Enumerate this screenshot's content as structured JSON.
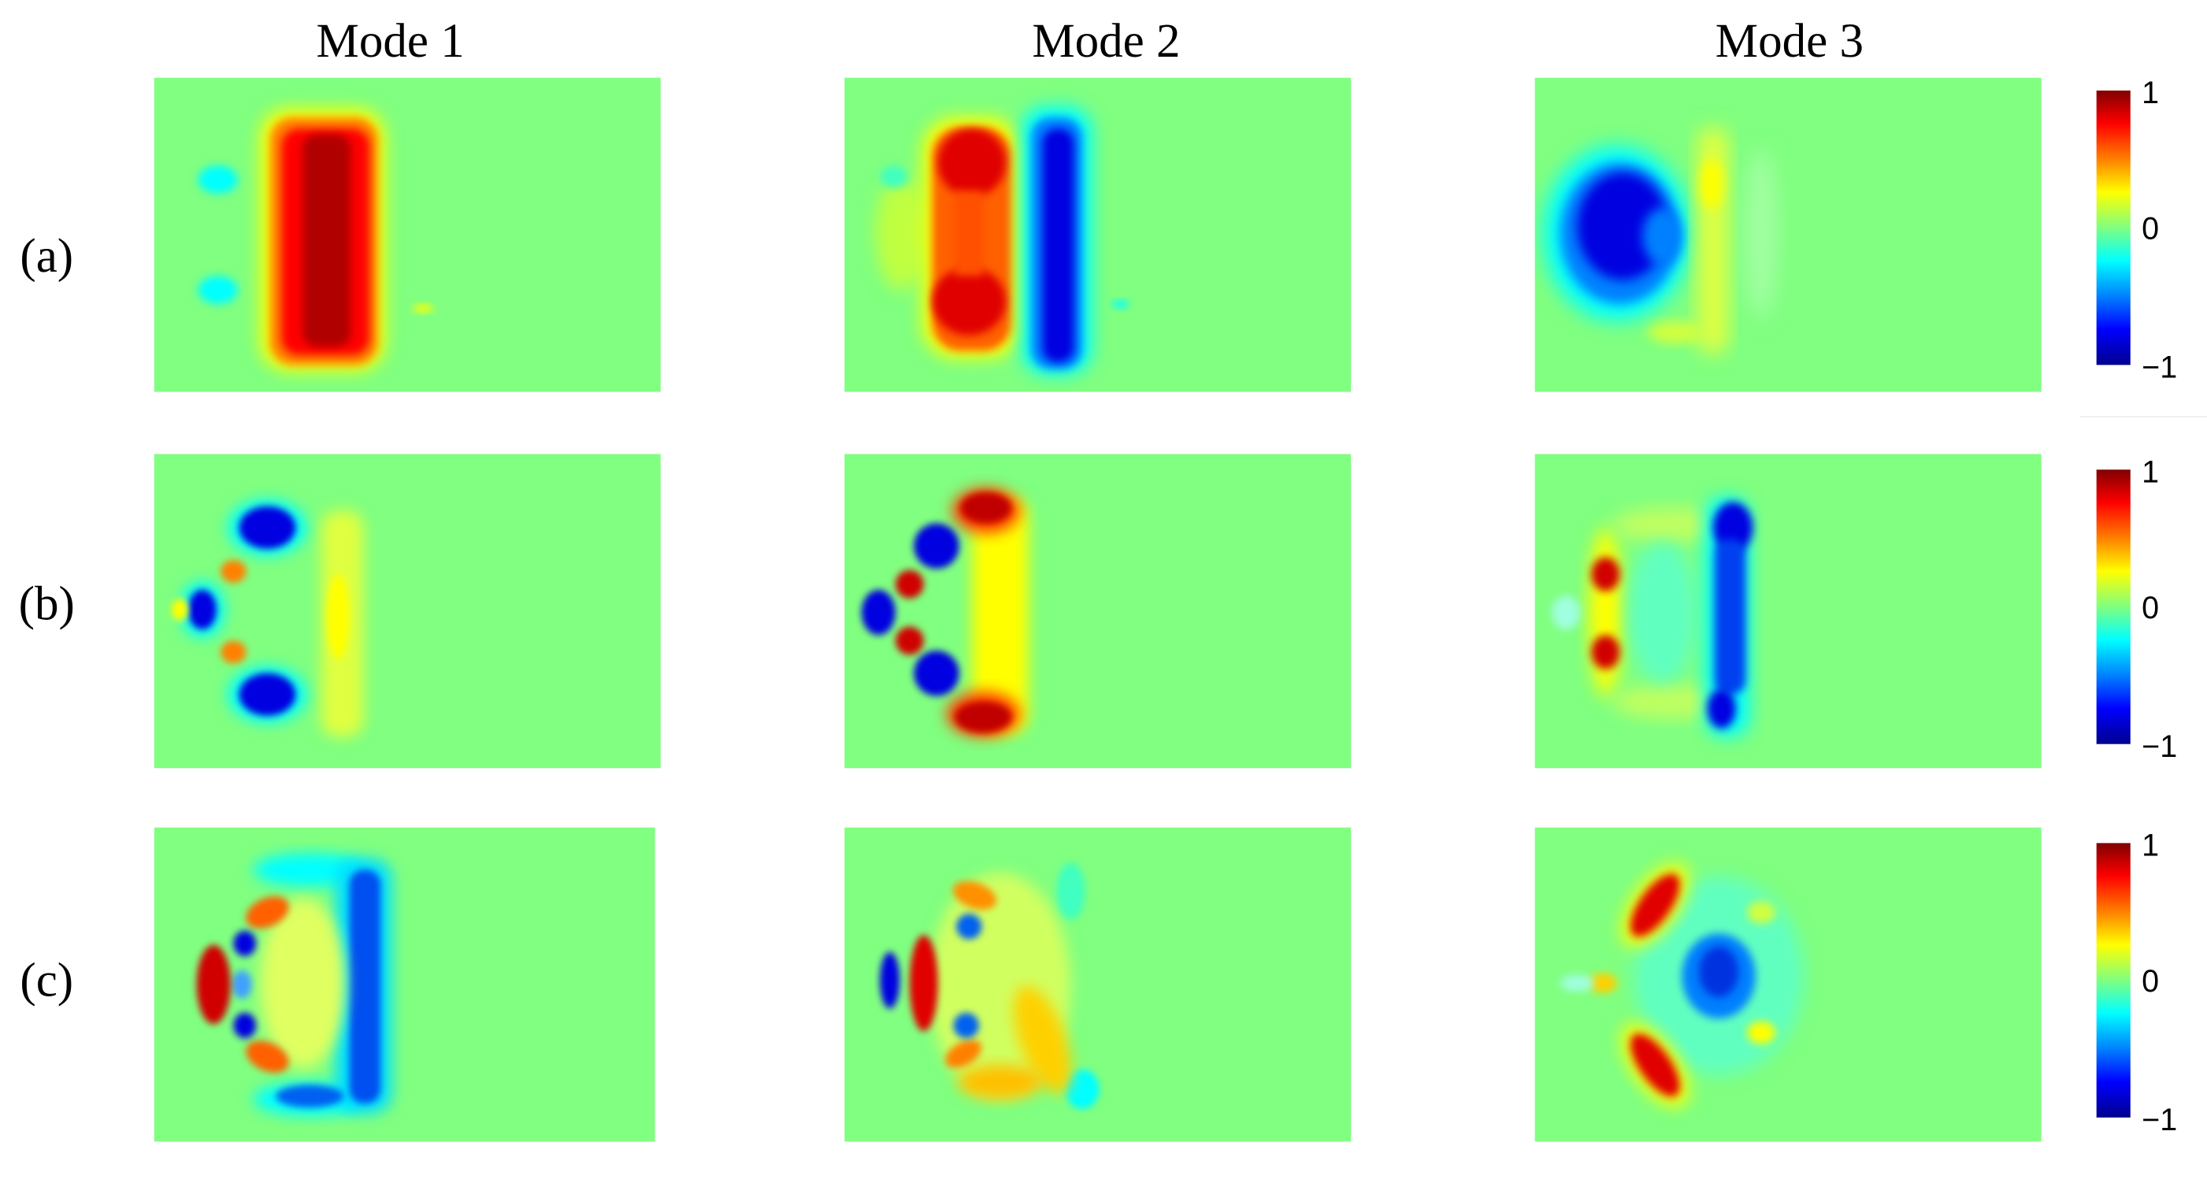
{
  "columns": [
    {
      "label": "Mode 1"
    },
    {
      "label": "Mode 2"
    },
    {
      "label": "Mode 3"
    }
  ],
  "rows": [
    {
      "label": "(a)"
    },
    {
      "label": "(b)"
    },
    {
      "label": "(c)"
    }
  ],
  "colorbar": {
    "max": "1",
    "mid": "0",
    "min": "−1",
    "colormap": "jet",
    "colors": [
      "#800000",
      "#ff0000",
      "#ff8000",
      "#ffff00",
      "#80ff80",
      "#00ffff",
      "#0080ff",
      "#0000ff",
      "#00008f"
    ]
  },
  "colors": {
    "background_field": "#80ff80",
    "positive": "#d00000",
    "negative": "#0000d0"
  }
}
